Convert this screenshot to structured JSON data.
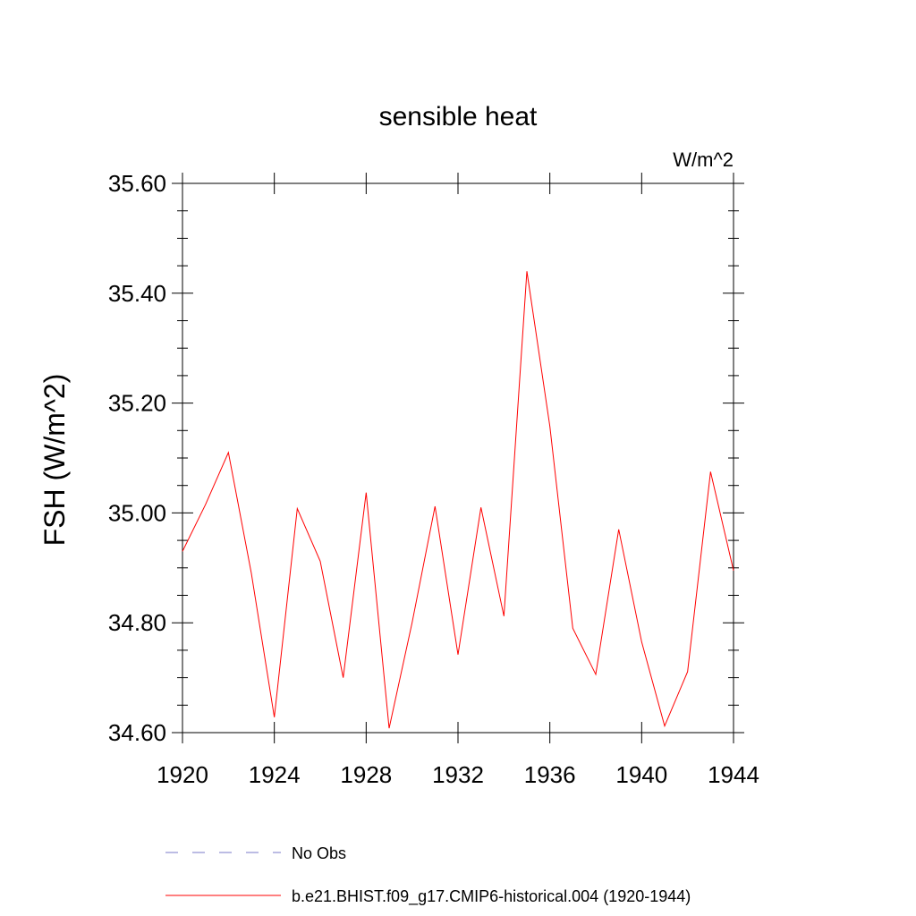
{
  "chart_data": {
    "type": "line",
    "title": "sensible heat",
    "units_label": "W/m^2",
    "ylabel": "FSH  (W/m^2)",
    "xlabel": "",
    "xlim": [
      1920,
      1944
    ],
    "ylim": [
      34.6,
      35.6
    ],
    "x_ticks": [
      1920,
      1924,
      1928,
      1932,
      1936,
      1940,
      1944
    ],
    "y_ticks": [
      "34.60",
      "34.80",
      "35.00",
      "35.20",
      "35.40",
      "35.60"
    ],
    "grid": false,
    "x": [
      1920,
      1921,
      1922,
      1923,
      1924,
      1925,
      1926,
      1927,
      1928,
      1929,
      1930,
      1931,
      1932,
      1933,
      1934,
      1935,
      1936,
      1937,
      1938,
      1939,
      1940,
      1941,
      1942,
      1943,
      1944
    ],
    "series": [
      {
        "name": "b.e21.BHIST.f09_g17.CMIP6-historical.004 (1920-1944)",
        "color": "#ff0000",
        "style": "solid",
        "values": [
          34.93,
          35.015,
          35.11,
          34.89,
          34.628,
          35.008,
          34.912,
          34.7,
          35.037,
          34.608,
          34.8,
          35.012,
          34.742,
          35.01,
          34.812,
          35.44,
          35.158,
          34.79,
          34.706,
          34.97,
          34.765,
          34.612,
          34.711,
          35.075,
          34.895
        ]
      }
    ],
    "legend": [
      {
        "label": "No Obs",
        "color": "#7a7ac8",
        "style": "dashed"
      },
      {
        "label": "b.e21.BHIST.f09_g17.CMIP6-historical.004 (1920-1944)",
        "color": "#ff0000",
        "style": "solid"
      }
    ],
    "legend_position": "bottom"
  }
}
